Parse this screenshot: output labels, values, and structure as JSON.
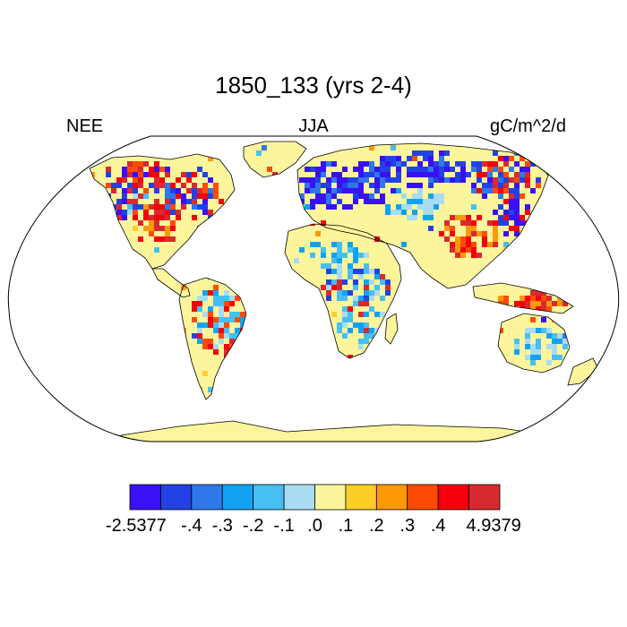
{
  "title": "1850_133 (yrs 2-4)",
  "left_label": "NEE",
  "center_label": "JJA",
  "right_label": "gC/m^2/d",
  "colorbar": {
    "colors": [
      "#3a10f4",
      "#2242e4",
      "#2f78ea",
      "#12a2f4",
      "#47bff4",
      "#a8dcf2",
      "#fdf59c",
      "#fdcd28",
      "#fd9909",
      "#fd4b06",
      "#f4000a",
      "#d72a30"
    ],
    "labels": [
      "-2.5377",
      "-.4",
      "-.3",
      "-.2",
      "-.1",
      ".0",
      ".1",
      ".2",
      ".3",
      ".4",
      "4.9379"
    ]
  },
  "colors": {
    "land_base": "#fdf59c",
    "coast": "#000000",
    "frame": "#000000"
  }
}
